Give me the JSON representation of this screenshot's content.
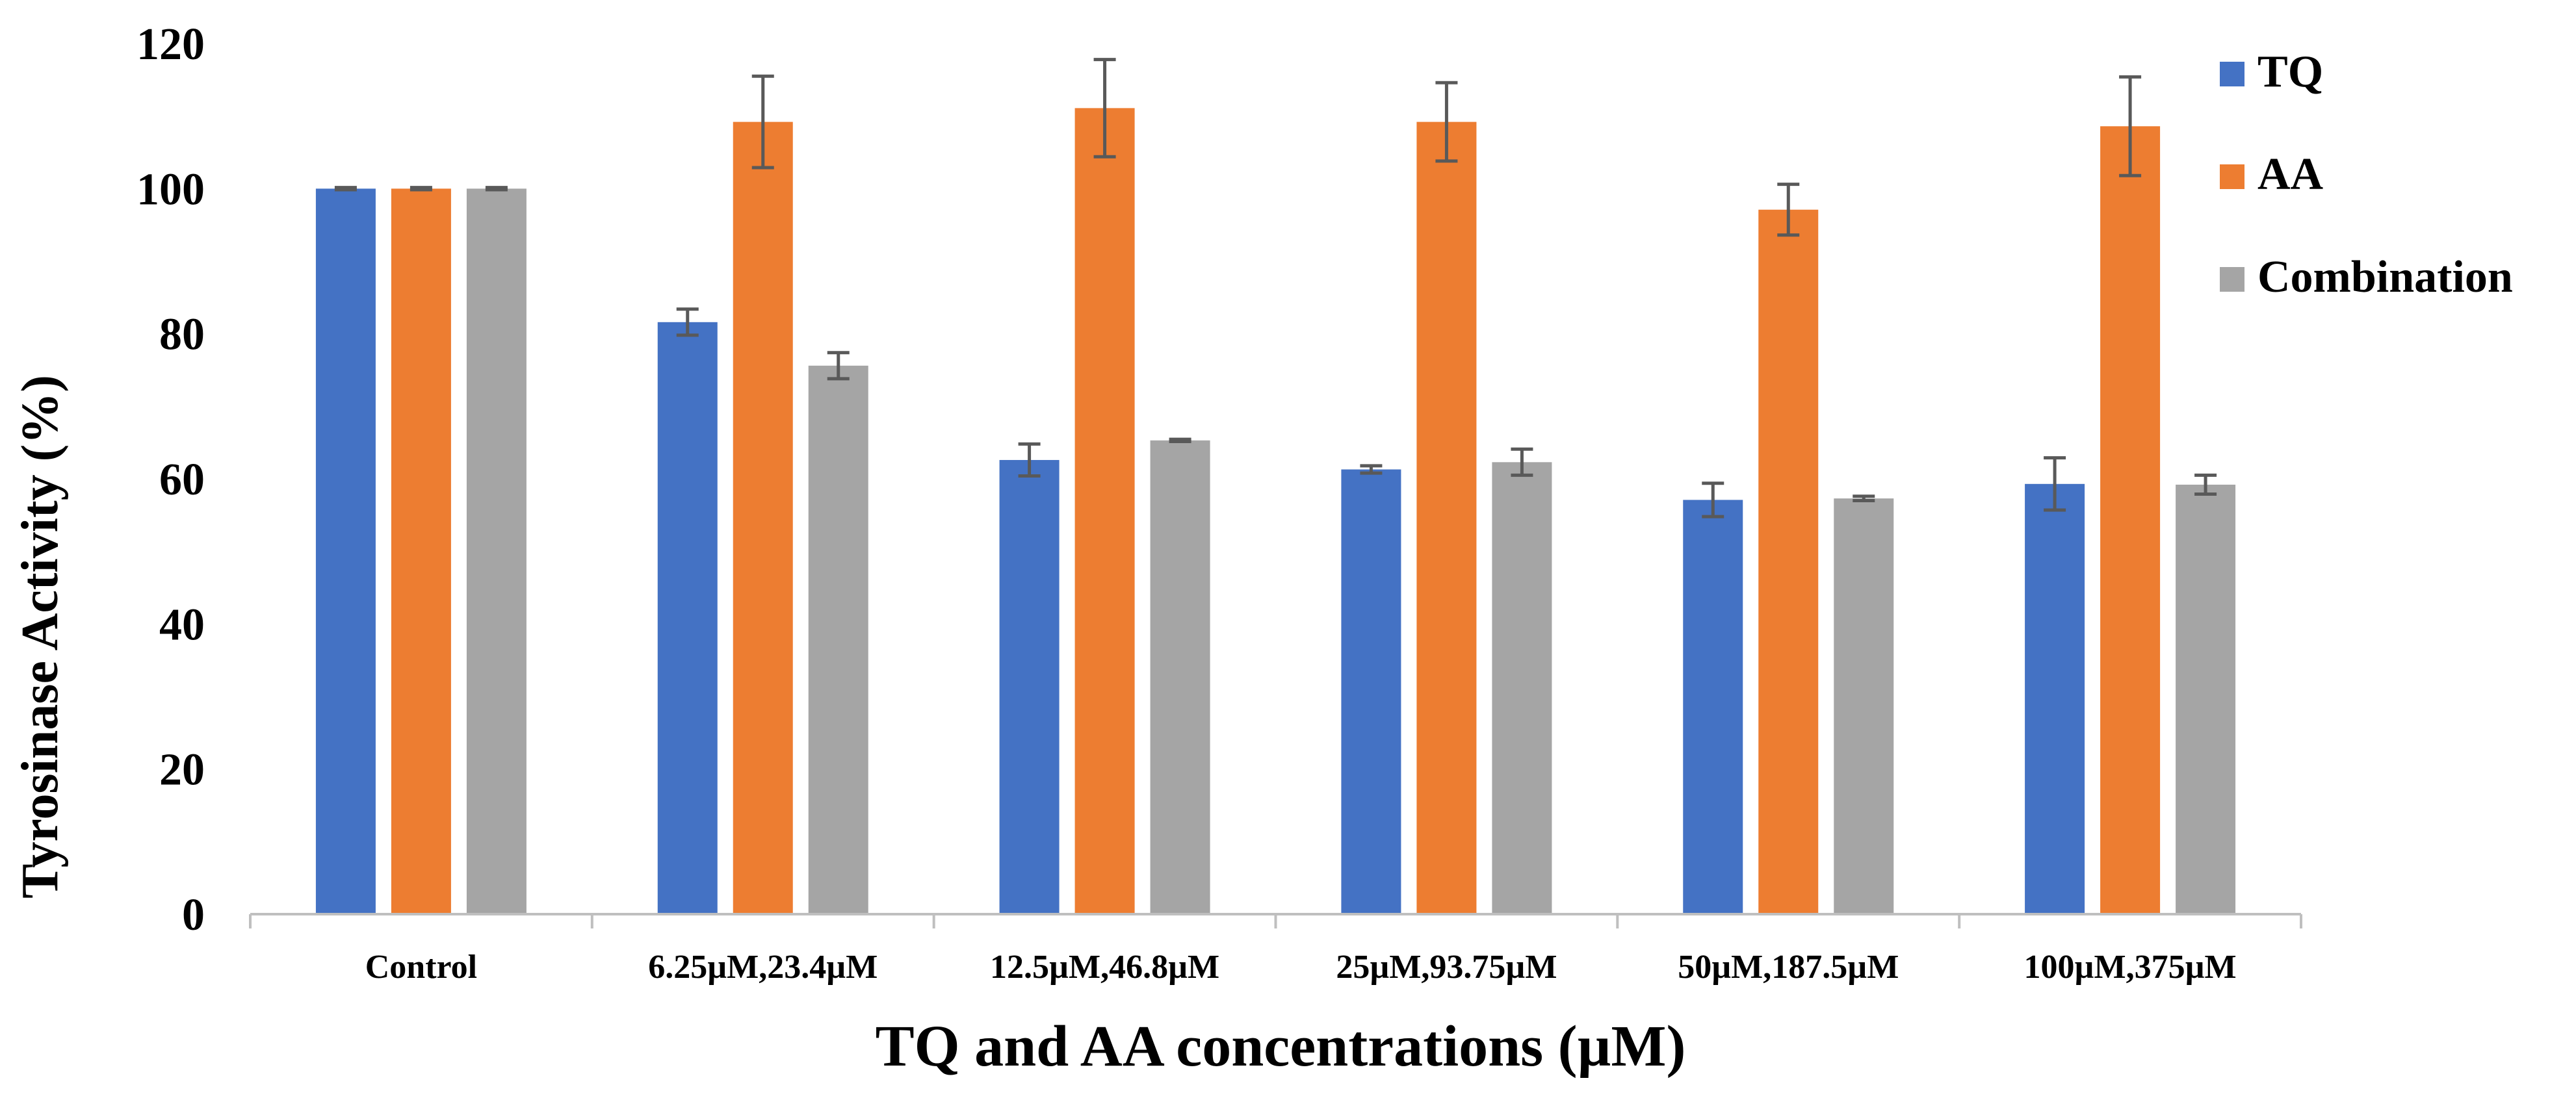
{
  "chart_data": {
    "type": "bar",
    "title": "",
    "xlabel": "TQ  and AA concentrations (µM)",
    "ylabel": "Tyrosinase Activity (%)",
    "ylim": [
      0,
      120
    ],
    "yticks": [
      0,
      20,
      40,
      60,
      80,
      100,
      120
    ],
    "grid": false,
    "legend_position": "top-right",
    "categories": [
      "Control",
      "6.25µM,23.4µM",
      "12.5µM,46.8µM",
      "25µM,93.75µM",
      "50µM,187.5µM",
      "100µM,375µM"
    ],
    "series": [
      {
        "name": "TQ",
        "color": "#4472C4",
        "values": [
          100,
          81.6,
          62.6,
          61.3,
          57.1,
          59.3
        ],
        "errors": [
          0.15,
          1.8,
          2.2,
          0.5,
          2.3,
          3.6
        ]
      },
      {
        "name": "AA",
        "color": "#ED7D31",
        "values": [
          100,
          109.2,
          111.1,
          109.2,
          97.1,
          108.6
        ],
        "errors": [
          0.15,
          6.3,
          6.7,
          5.4,
          3.5,
          6.8
        ]
      },
      {
        "name": "Combination",
        "color": "#A5A5A5",
        "values": [
          100,
          75.6,
          65.3,
          62.3,
          57.3,
          59.2
        ],
        "errors": [
          0.15,
          1.8,
          0.15,
          1.8,
          0.3,
          1.3
        ]
      }
    ]
  }
}
